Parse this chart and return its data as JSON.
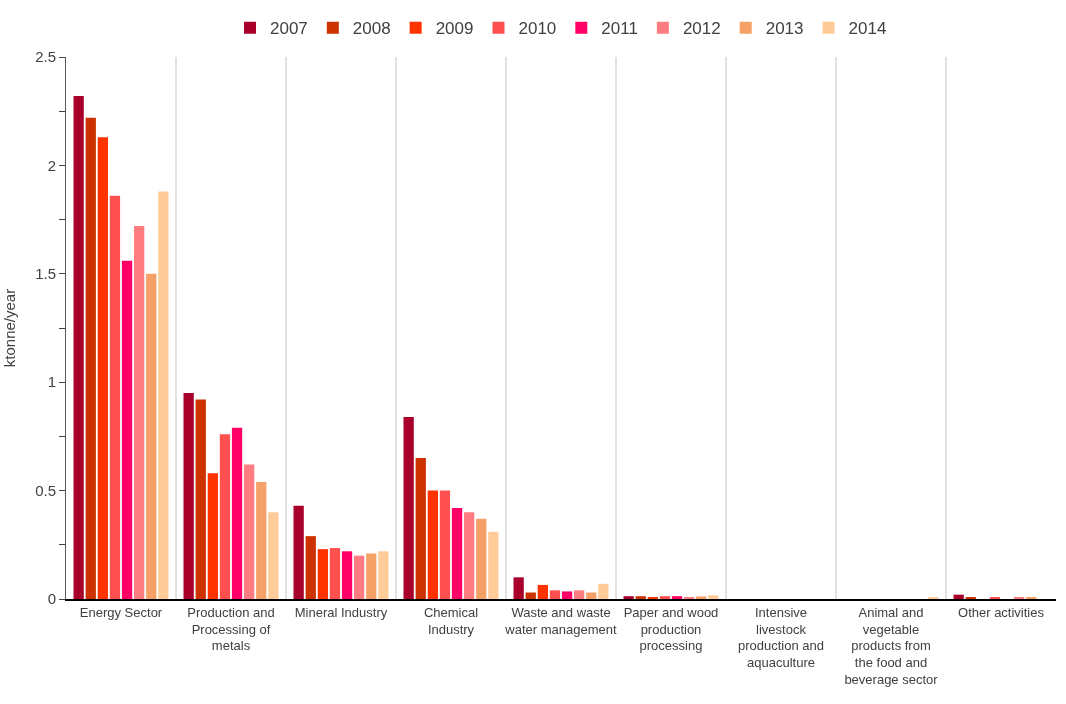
{
  "chart_data": {
    "type": "bar",
    "ylabel": "ktonne/year",
    "categories": [
      "Energy Sector",
      "Production and Processing of metals",
      "Mineral Industry",
      "Chemical Industry",
      "Waste and waste water management",
      "Paper and wood production processing",
      "Intensive livestock production and aquaculture",
      "Animal and vegetable products from the food and beverage sector",
      "Other activities"
    ],
    "series": [
      {
        "name": "2007",
        "color": "#a8002a",
        "values": [
          2.32,
          0.95,
          0.43,
          0.84,
          0.1,
          0.013,
          0,
          0,
          0.02
        ]
      },
      {
        "name": "2008",
        "color": "#cc3300",
        "values": [
          2.22,
          0.92,
          0.29,
          0.65,
          0.03,
          0.013,
          0,
          0,
          0.008
        ]
      },
      {
        "name": "2009",
        "color": "#ff3300",
        "values": [
          2.13,
          0.58,
          0.23,
          0.5,
          0.065,
          0.008,
          0,
          0,
          0
        ]
      },
      {
        "name": "2010",
        "color": "#ff5050",
        "values": [
          1.86,
          0.76,
          0.235,
          0.5,
          0.04,
          0.013,
          0,
          0,
          0.008
        ]
      },
      {
        "name": "2011",
        "color": "#ff0066",
        "values": [
          1.56,
          0.79,
          0.22,
          0.42,
          0.035,
          0.013,
          0,
          0,
          0
        ]
      },
      {
        "name": "2012",
        "color": "#ff7c80",
        "values": [
          1.72,
          0.62,
          0.2,
          0.4,
          0.04,
          0.008,
          0,
          0,
          0.008
        ]
      },
      {
        "name": "2013",
        "color": "#f4a067",
        "values": [
          1.5,
          0.54,
          0.21,
          0.37,
          0.03,
          0.012,
          0,
          0,
          0.008
        ]
      },
      {
        "name": "2014",
        "color": "#ffcc99",
        "values": [
          1.88,
          0.4,
          0.22,
          0.31,
          0.07,
          0.017,
          0,
          0.005,
          0
        ]
      }
    ],
    "ylim": [
      0,
      2.5
    ],
    "yticks": [
      0,
      {
        "value": 0.25,
        "label": null
      },
      0.5,
      {
        "value": 0.75,
        "label": null
      },
      1,
      {
        "value": 1.25,
        "label": null
      },
      1.5,
      {
        "value": 1.75,
        "label": null
      },
      2,
      {
        "value": 2.25,
        "label": null
      },
      2.5
    ],
    "grid": "x",
    "legend": "top"
  }
}
